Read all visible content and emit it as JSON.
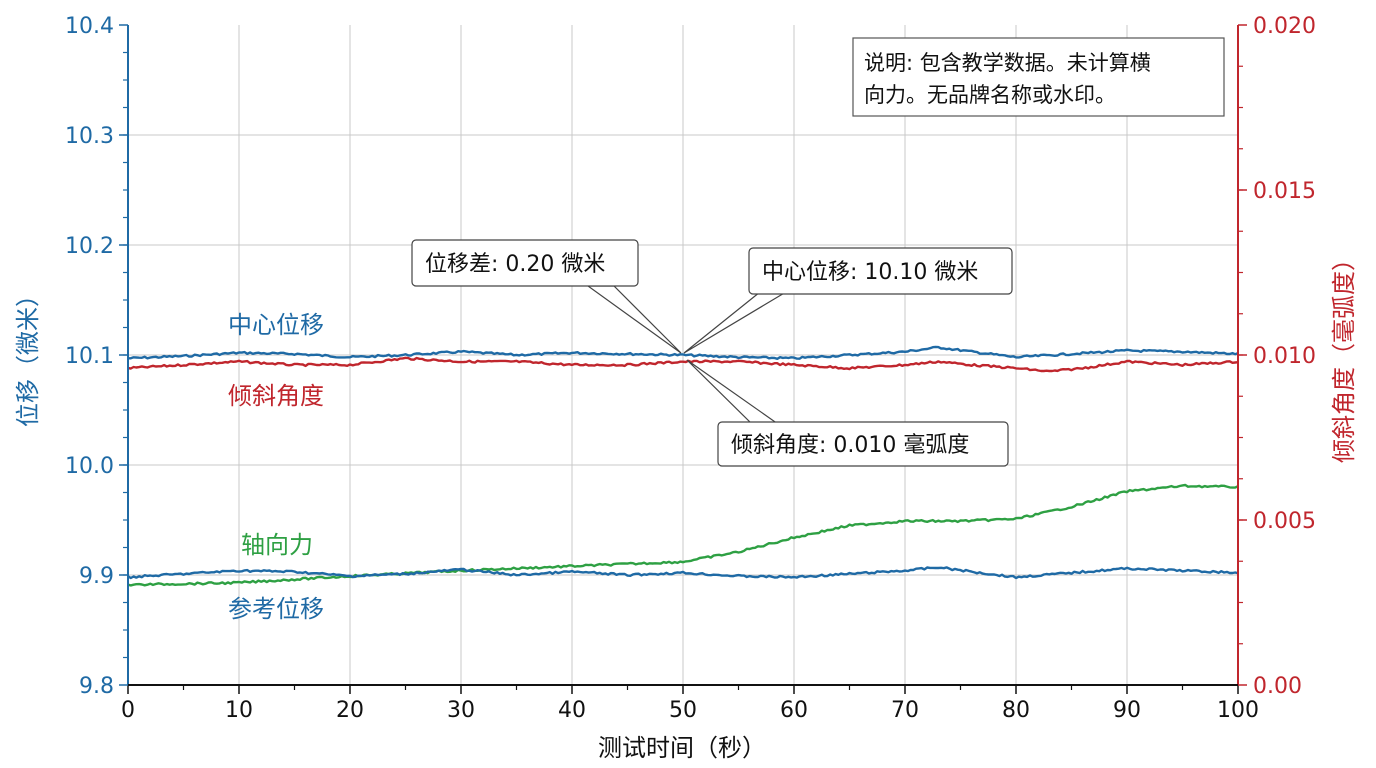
{
  "colors": {
    "blue": "#1f6aa5",
    "red": "#c0262d",
    "green": "#2ea043",
    "grid": "#c8c8c8",
    "text": "#111111"
  },
  "chart_data": {
    "type": "line",
    "xlabel": "测试时间（秒）",
    "ylabel_left": "位移（微米）",
    "ylabel_right": "倾斜角度（毫弧度）",
    "xlim": [
      0,
      100
    ],
    "ylim_left": [
      9.8,
      10.4
    ],
    "ylim_right": [
      0.0,
      0.02
    ],
    "x_ticks": [
      "0",
      "10",
      "20",
      "30",
      "40",
      "50",
      "60",
      "70",
      "80",
      "90",
      "100"
    ],
    "y_left_ticks": [
      "9.8",
      "9.9",
      "10.0",
      "10.1",
      "10.2",
      "10.3",
      "10.4"
    ],
    "y_right_ticks": [
      "0.00",
      "0.005",
      "0.010",
      "0.015",
      "0.020"
    ],
    "grid": true,
    "series": [
      {
        "name": "中心位移",
        "axis": "left",
        "color": "#1f6aa5",
        "x": [
          0,
          5,
          10,
          15,
          20,
          25,
          30,
          35,
          40,
          45,
          50,
          55,
          60,
          65,
          70,
          73,
          76,
          80,
          85,
          90,
          95,
          100
        ],
        "y": [
          10.097,
          10.099,
          10.102,
          10.101,
          10.098,
          10.1,
          10.103,
          10.1,
          10.102,
          10.101,
          10.1,
          10.098,
          10.097,
          10.1,
          10.103,
          10.107,
          10.103,
          10.098,
          10.101,
          10.104,
          10.103,
          10.101
        ]
      },
      {
        "name": "倾斜角度",
        "axis": "right",
        "color": "#c0262d",
        "x": [
          0,
          5,
          10,
          15,
          20,
          25,
          30,
          35,
          40,
          45,
          50,
          55,
          60,
          65,
          70,
          73,
          76,
          80,
          83,
          86,
          90,
          95,
          100
        ],
        "y": [
          0.0096,
          0.0097,
          0.0098,
          0.0097,
          0.0097,
          0.0099,
          0.0098,
          0.0098,
          0.0097,
          0.0097,
          0.0098,
          0.0098,
          0.0097,
          0.0096,
          0.0097,
          0.0098,
          0.0097,
          0.0096,
          0.0095,
          0.0096,
          0.0098,
          0.0097,
          0.0098
        ]
      },
      {
        "name": "轴向力",
        "axis": "left",
        "color": "#2ea043",
        "x": [
          0,
          10,
          20,
          30,
          40,
          50,
          55,
          60,
          65,
          70,
          75,
          80,
          85,
          90,
          95,
          100
        ],
        "y": [
          9.891,
          9.893,
          9.899,
          9.904,
          9.908,
          9.912,
          9.921,
          9.934,
          9.945,
          9.949,
          9.949,
          9.951,
          9.962,
          9.976,
          9.981,
          9.98
        ]
      },
      {
        "name": "参考位移",
        "axis": "left",
        "color": "#1f6aa5",
        "x": [
          0,
          5,
          10,
          15,
          20,
          25,
          30,
          35,
          40,
          45,
          50,
          55,
          60,
          65,
          70,
          73,
          76,
          80,
          85,
          90,
          95,
          100
        ],
        "y": [
          9.898,
          9.901,
          9.904,
          9.903,
          9.899,
          9.901,
          9.905,
          9.9,
          9.903,
          9.9,
          9.902,
          9.899,
          9.898,
          9.901,
          9.904,
          9.907,
          9.903,
          9.898,
          9.902,
          9.906,
          9.904,
          9.902
        ]
      }
    ],
    "series_labels": {
      "center": "中心位移",
      "tilt": "倾斜角度",
      "axial": "轴向力",
      "reference": "参考位移"
    },
    "annotations": [
      {
        "id": "diff",
        "text": "位移差: 0.20 微米",
        "target": {
          "x": 50,
          "y": 10.1,
          "axis": "left"
        }
      },
      {
        "id": "center",
        "text": "中心位移: 10.10 微米",
        "target": {
          "x": 50,
          "y": 10.1,
          "axis": "left"
        }
      },
      {
        "id": "tilt",
        "text": "倾斜角度: 0.010 毫弧度",
        "target": {
          "x": 50,
          "y": 0.0097,
          "axis": "right"
        }
      }
    ],
    "note": {
      "line1": "说明: 包含教学数据。未计算横",
      "line2": "向力。无品牌名称或水印。"
    }
  }
}
